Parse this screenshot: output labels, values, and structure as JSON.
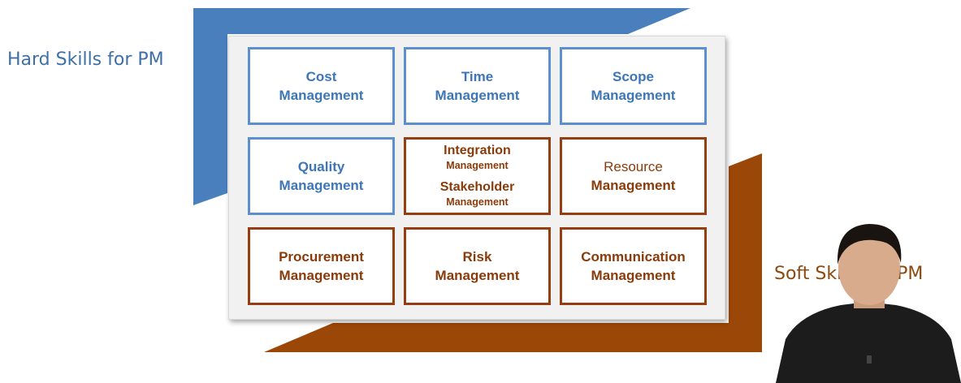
{
  "labels": {
    "hard": "Hard Skills for PM",
    "soft": "Soft Skills for PM"
  },
  "colors": {
    "hard_band": "#4a7fbe",
    "soft_band": "#9b4708",
    "blue_border": "#5b8fd0",
    "brown_border": "#963e10"
  },
  "grid": {
    "cost": {
      "l1": "Cost",
      "l2": "Management"
    },
    "time": {
      "l1": "Time",
      "l2": "Management"
    },
    "scope": {
      "l1": "Scope",
      "l2": "Management"
    },
    "quality": {
      "l1": "Quality",
      "l2": "Management"
    },
    "integration": {
      "l1": "Integration",
      "l2": "Management",
      "l3": "Stakeholder",
      "l4": "Management"
    },
    "resource": {
      "l1": "Resource",
      "l2": "Management"
    },
    "procurement": {
      "l1": "Procurement",
      "l2": "Management"
    },
    "risk": {
      "l1": "Risk",
      "l2": "Management"
    },
    "communication": {
      "l1": "Communication",
      "l2": "Management"
    }
  }
}
